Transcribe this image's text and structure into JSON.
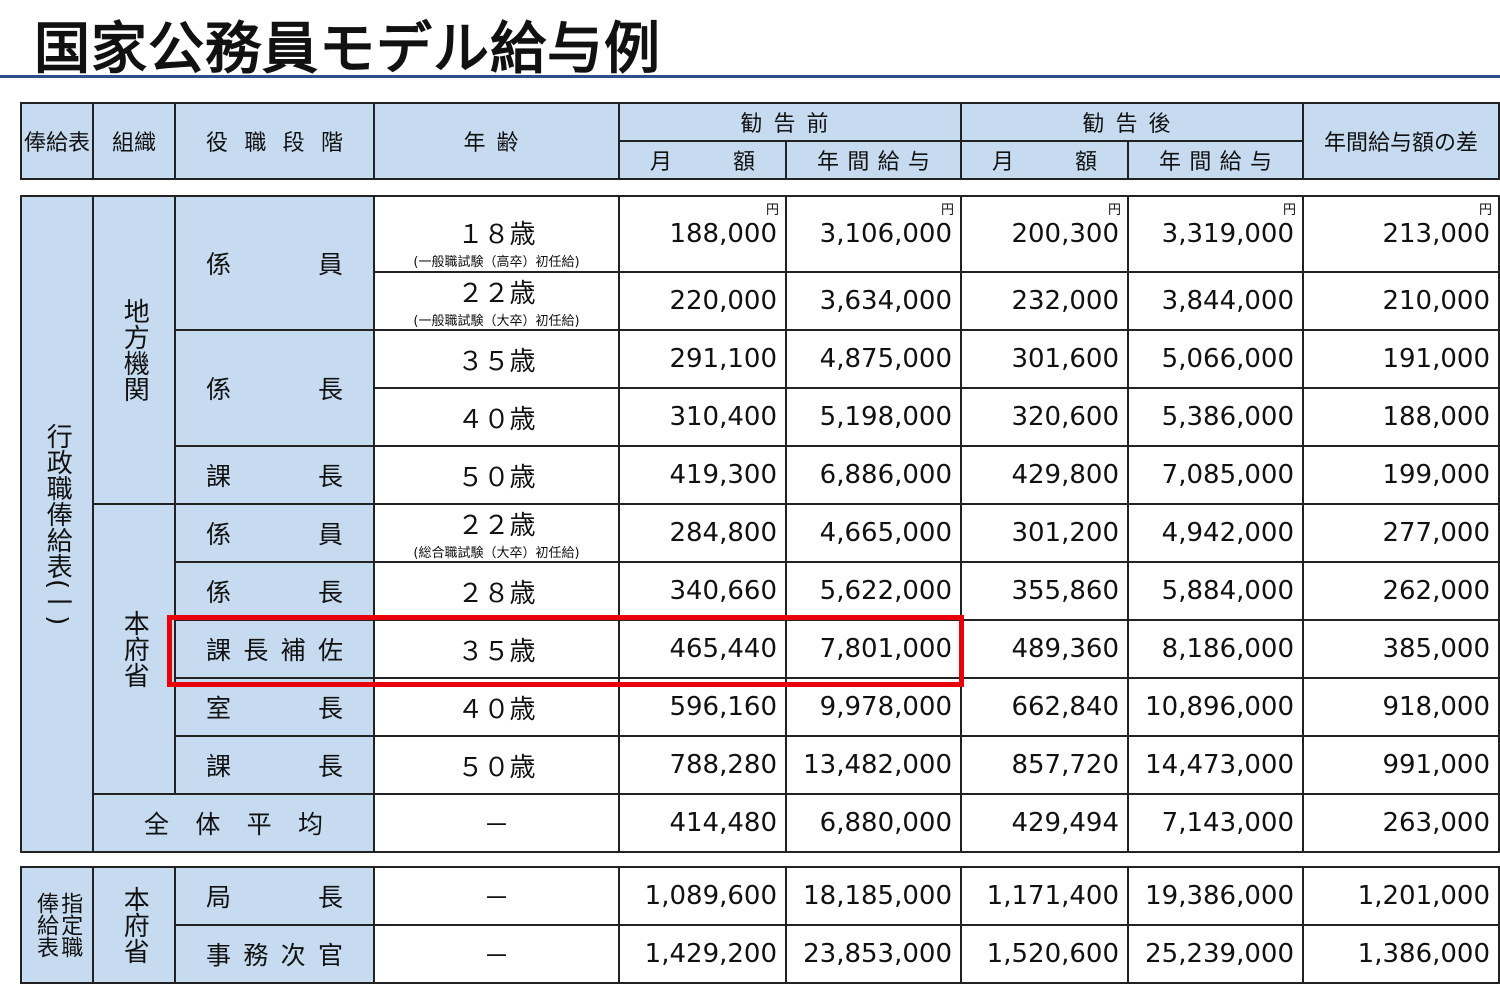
{
  "title": "国家公務員モデル給与例",
  "header": {
    "salary_table": "俸給表",
    "organization": "組織",
    "position": "役職段階",
    "age": "年齢",
    "before": "勧告前",
    "after": "勧告後",
    "monthly_before": "月額",
    "annual_before": "年間給与",
    "monthly_after": "月額",
    "annual_after": "年間給与",
    "difference": "年間給与額の差"
  },
  "unit": "円",
  "table1": {
    "salary_table": "行政職俸給表(一)",
    "orgs": [
      {
        "label": "地方機関",
        "positions": [
          {
            "label": "係員",
            "rows": [
              {
                "age": "１８歳",
                "note": "(一般職試験（高卒）初任給)",
                "values": [
                  "188,000",
                  "3,106,000",
                  "200,300",
                  "3,319,000",
                  "213,000"
                ]
              },
              {
                "age": "２２歳",
                "note": "(一般職試験（大卒）初任給)",
                "values": [
                  "220,000",
                  "3,634,000",
                  "232,000",
                  "3,844,000",
                  "210,000"
                ]
              }
            ]
          },
          {
            "label": "係長",
            "rows": [
              {
                "age": "３５歳",
                "values": [
                  "291,100",
                  "4,875,000",
                  "301,600",
                  "5,066,000",
                  "191,000"
                ]
              },
              {
                "age": "４０歳",
                "values": [
                  "310,400",
                  "5,198,000",
                  "320,600",
                  "5,386,000",
                  "188,000"
                ]
              }
            ]
          },
          {
            "label": "課長",
            "rows": [
              {
                "age": "５０歳",
                "values": [
                  "419,300",
                  "6,886,000",
                  "429,800",
                  "7,085,000",
                  "199,000"
                ]
              }
            ]
          }
        ]
      },
      {
        "label": "本府省",
        "positions": [
          {
            "label": "係員",
            "rows": [
              {
                "age": "２２歳",
                "note": "(総合職試験（大卒）初任給)",
                "values": [
                  "284,800",
                  "4,665,000",
                  "301,200",
                  "4,942,000",
                  "277,000"
                ]
              }
            ]
          },
          {
            "label": "係長",
            "rows": [
              {
                "age": "２８歳",
                "values": [
                  "340,660",
                  "5,622,000",
                  "355,860",
                  "5,884,000",
                  "262,000"
                ]
              }
            ]
          },
          {
            "label": "課長補佐",
            "rows": [
              {
                "age": "３５歳",
                "values": [
                  "465,440",
                  "7,801,000",
                  "489,360",
                  "8,186,000",
                  "385,000"
                ]
              }
            ]
          },
          {
            "label": "室長",
            "rows": [
              {
                "age": "４０歳",
                "values": [
                  "596,160",
                  "9,978,000",
                  "662,840",
                  "10,896,000",
                  "918,000"
                ]
              }
            ]
          },
          {
            "label": "課長",
            "rows": [
              {
                "age": "５０歳",
                "values": [
                  "788,280",
                  "13,482,000",
                  "857,720",
                  "14,473,000",
                  "991,000"
                ]
              }
            ]
          }
        ]
      }
    ],
    "average": {
      "label": "全体平均",
      "age": "－",
      "values": [
        "414,480",
        "6,880,000",
        "429,494",
        "7,143,000",
        "263,000"
      ]
    }
  },
  "table2": {
    "salary_table": "指定職俸給表",
    "org": "本府省",
    "positions": [
      {
        "label": "局長",
        "age": "－",
        "values": [
          "1,089,600",
          "18,185,000",
          "1,171,400",
          "19,386,000",
          "1,201,000"
        ]
      },
      {
        "label": "事務次官",
        "age": "－",
        "values": [
          "1,429,200",
          "23,853,000",
          "1,520,600",
          "25,239,000",
          "1,386,000"
        ]
      }
    ]
  }
}
